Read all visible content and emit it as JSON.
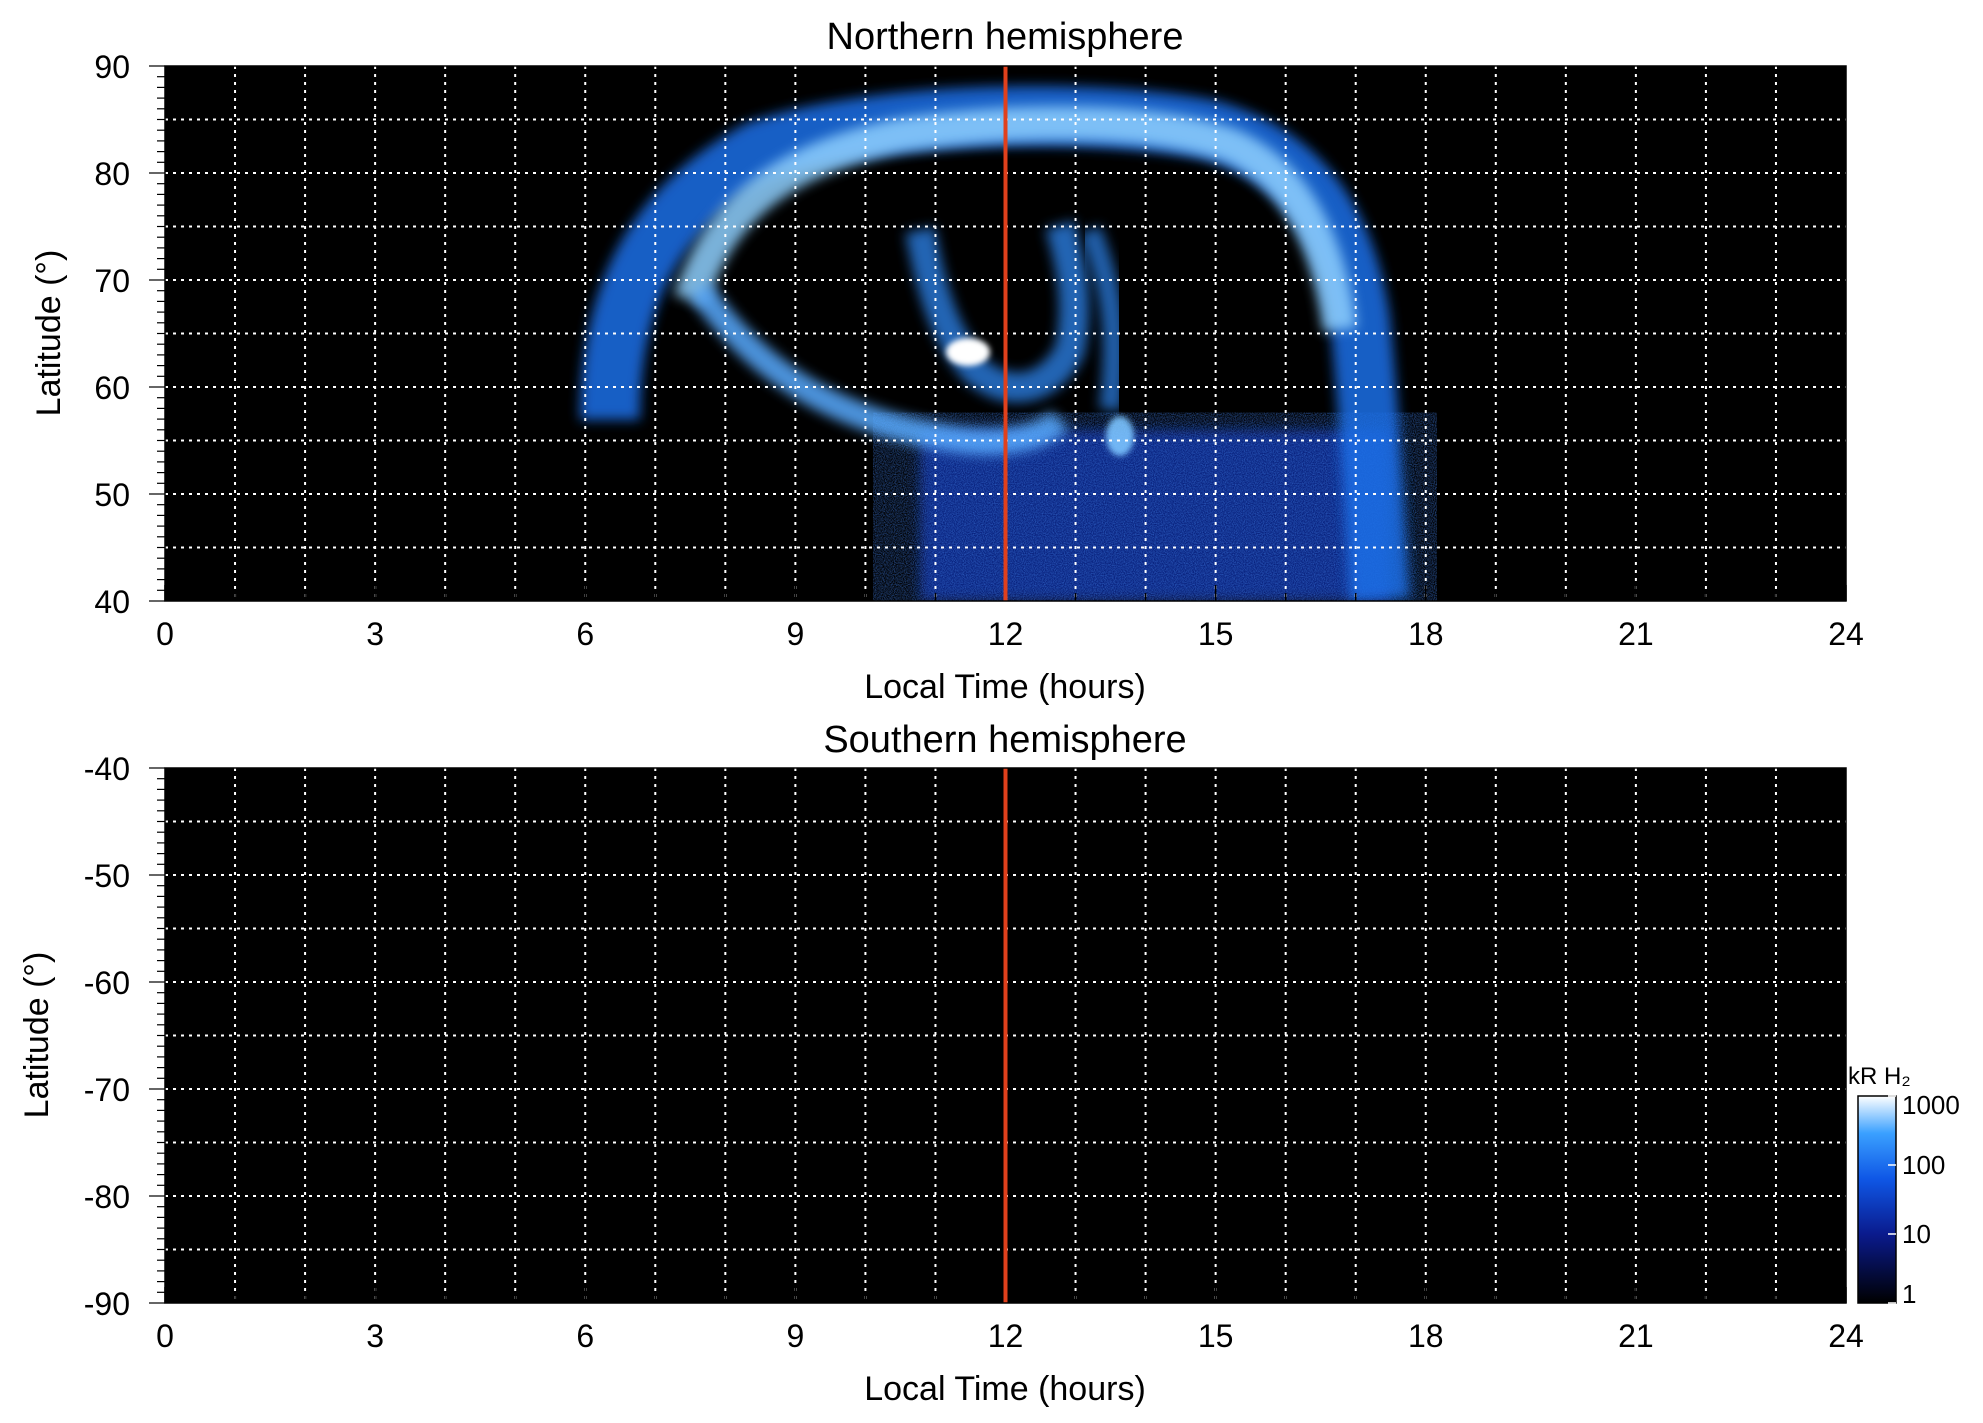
{
  "chart_data": [
    {
      "type": "heatmap",
      "title": "Northern hemisphere",
      "xlabel": "Local Time (hours)",
      "ylabel": "Latitude (°)",
      "xlim": [
        0,
        24
      ],
      "ylim": [
        40,
        90
      ],
      "xticks": [
        0,
        3,
        6,
        9,
        12,
        15,
        18,
        21,
        24
      ],
      "yticks": [
        40,
        50,
        60,
        70,
        80,
        90
      ],
      "grid": true,
      "marker_line_x": 12,
      "marker_line_color": "#e0401c",
      "background_color": "#000000",
      "features": [
        {
          "type": "arc",
          "lt_start": 6.3,
          "lt_end": 17.3,
          "lat_peak": 85,
          "lat_end": 40,
          "width_deg": 6,
          "intensity": 300
        },
        {
          "type": "spot",
          "lt": 11.4,
          "lat": 63,
          "intensity": 1000
        },
        {
          "type": "spot",
          "lt": 13.6,
          "lat": 55.5,
          "intensity": 400
        },
        {
          "type": "diffuse",
          "lt_start": 10.8,
          "lt_end": 17.2,
          "lat_start": 40,
          "lat_end": 52,
          "intensity": 15
        }
      ]
    },
    {
      "type": "heatmap",
      "title": "Southern hemisphere",
      "xlabel": "Local Time (hours)",
      "ylabel": "Latitude (°)",
      "xlim": [
        0,
        24
      ],
      "ylim": [
        -90,
        -40
      ],
      "xticks": [
        0,
        3,
        6,
        9,
        12,
        15,
        18,
        21,
        24
      ],
      "yticks": [
        -40,
        -50,
        -60,
        -70,
        -80,
        -90
      ],
      "grid": true,
      "marker_line_x": 12,
      "marker_line_color": "#e0401c",
      "background_color": "#000000",
      "features": []
    }
  ],
  "colorbar": {
    "label": "kR H₂",
    "scale": "log",
    "range": [
      1,
      1000
    ],
    "ticks": [
      "1000",
      "100",
      "10",
      "1"
    ],
    "colors": [
      "#000000",
      "#0a1a8c",
      "#0f57e6",
      "#3aa0ff",
      "#ffffff"
    ]
  }
}
